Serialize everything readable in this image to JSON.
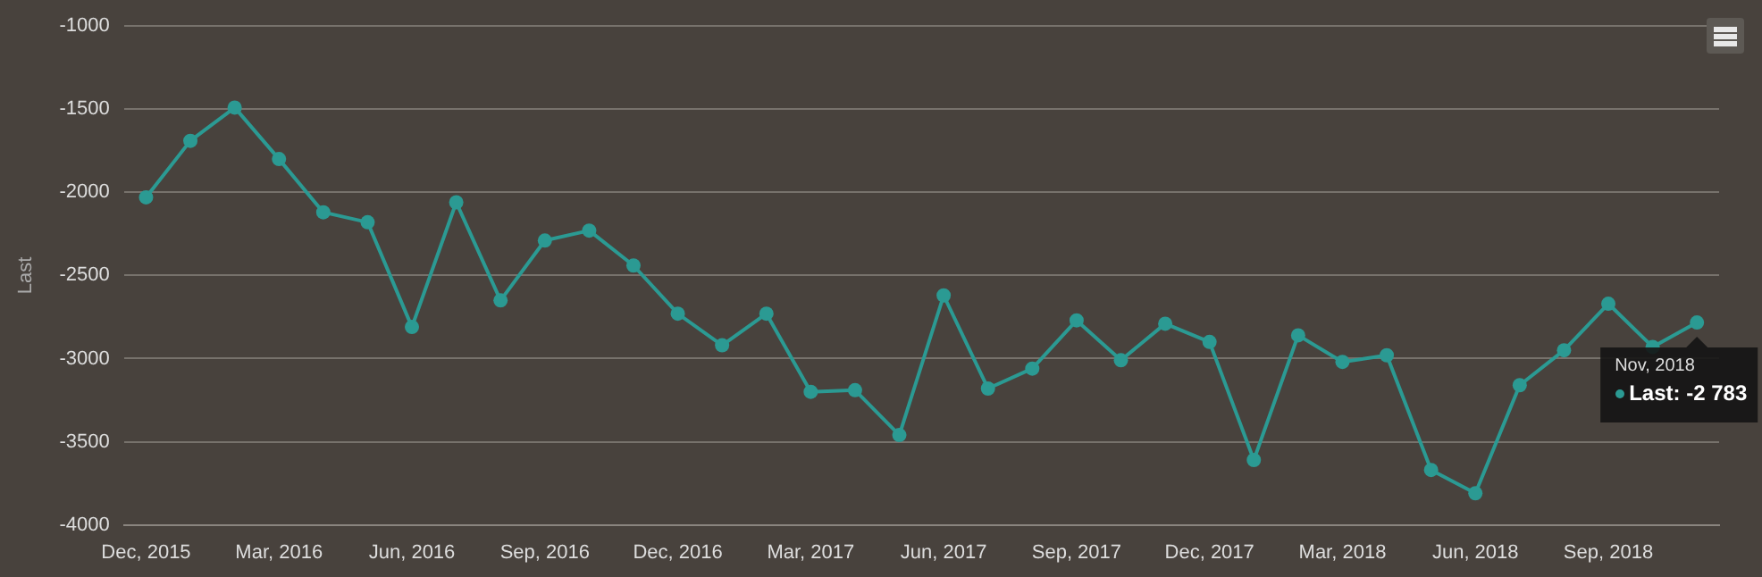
{
  "chart_data": {
    "type": "line",
    "ylabel": "Last",
    "categories": [
      "Dec, 2015",
      null,
      null,
      "Mar, 2016",
      null,
      null,
      "Jun, 2016",
      null,
      null,
      "Sep, 2016",
      null,
      null,
      "Dec, 2016",
      null,
      null,
      "Mar, 2017",
      null,
      null,
      "Jun, 2017",
      null,
      null,
      "Sep, 2017",
      null,
      null,
      "Dec, 2017",
      null,
      null,
      "Mar, 2018",
      null,
      null,
      "Jun, 2018",
      null,
      null,
      "Sep, 2018",
      null,
      null
    ],
    "series": [
      {
        "color": "#2b9a93",
        "values": [
          -2030,
          -1690,
          -1490,
          -1800,
          -2120,
          -2180,
          -2810,
          -2060,
          -2650,
          -2290,
          -2230,
          -2440,
          -2730,
          -2920,
          -2730,
          -3200,
          -3190,
          -3460,
          -2620,
          -3180,
          -3060,
          -2770,
          -3010,
          -2790,
          -2900,
          -3610,
          -2860,
          -3020,
          -2980,
          -3670,
          -3810,
          -3160,
          -2950,
          -2670,
          -2930,
          -2783
        ]
      }
    ],
    "ylim": [
      -4000,
      -1000
    ],
    "yticks": [
      -4000,
      -3500,
      -3000,
      -2500,
      -2000,
      -1500,
      -1000
    ],
    "grid": "y",
    "legend": false,
    "marker": "circle",
    "line_style": "solid",
    "annotations": [
      "Nov, 2018",
      {
        "text": "Last: -2 783",
        "y": -2783
      }
    ]
  }
}
